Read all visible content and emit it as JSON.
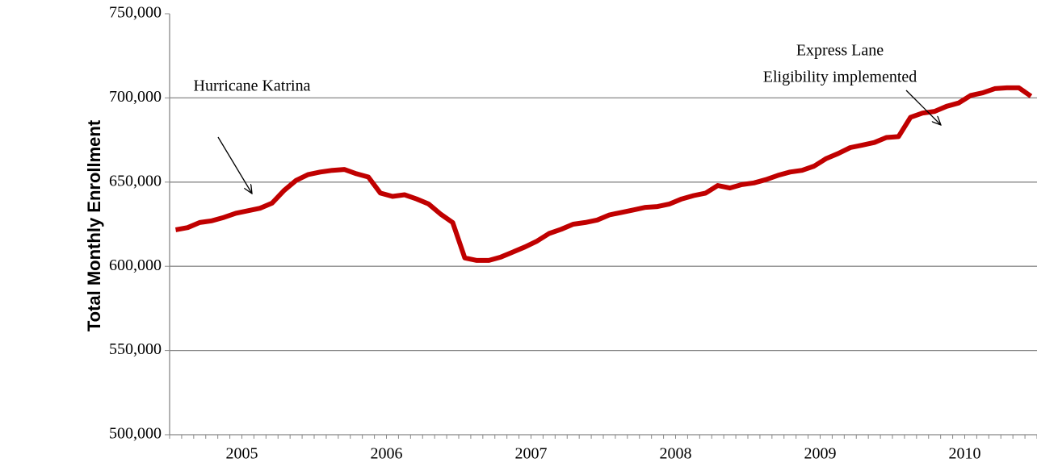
{
  "chart_data": {
    "type": "line",
    "y_axis_label": "Total Monthly Enrollment",
    "categories": [
      null,
      null,
      null,
      null,
      null,
      "2005",
      null,
      null,
      null,
      null,
      null,
      null,
      null,
      null,
      null,
      null,
      null,
      "2006",
      null,
      null,
      null,
      null,
      null,
      null,
      null,
      null,
      null,
      null,
      null,
      "2007",
      null,
      null,
      null,
      null,
      null,
      null,
      null,
      null,
      null,
      null,
      null,
      "2008",
      null,
      null,
      null,
      null,
      null,
      null,
      null,
      null,
      null,
      null,
      null,
      "2009",
      null,
      null,
      null,
      null,
      null,
      null,
      null,
      null,
      null,
      null,
      null,
      "2010",
      null,
      null,
      null,
      null,
      null,
      null
    ],
    "series": [
      {
        "color": "#c00000",
        "values": [
          621700,
          623000,
          626000,
          627000,
          629000,
          631500,
          633000,
          634500,
          637500,
          645000,
          651000,
          654500,
          656000,
          657000,
          657500,
          655000,
          653000,
          643500,
          641500,
          642500,
          640000,
          637000,
          631000,
          626000,
          605000,
          603500,
          603500,
          605500,
          608500,
          611500,
          615000,
          619500,
          622000,
          625000,
          626000,
          627500,
          630500,
          632000,
          633500,
          635000,
          635500,
          637000,
          640000,
          642000,
          643500,
          648000,
          646500,
          648500,
          649500,
          651500,
          654000,
          656000,
          657000,
          659500,
          664000,
          667000,
          670500,
          672000,
          673500,
          676500,
          677000,
          688500,
          691000,
          692000,
          695000,
          697000,
          701500,
          703000,
          705500,
          706000,
          706000,
          701000
        ]
      }
    ],
    "ylim": [
      500000,
      750000
    ],
    "yticks": [
      {
        "value": 500000,
        "label": "500,000"
      },
      {
        "value": 550000,
        "label": "550,000"
      },
      {
        "value": 600000,
        "label": "600,000"
      },
      {
        "value": 650000,
        "label": "650,000"
      },
      {
        "value": 700000,
        "label": "700,000"
      },
      {
        "value": 750000,
        "label": "750,000"
      }
    ],
    "grid": true,
    "annotations": [
      {
        "lines": [
          "Hurricane Katrina"
        ]
      },
      {
        "lines": [
          "Express Lane",
          "Eligibility implemented"
        ]
      }
    ]
  }
}
